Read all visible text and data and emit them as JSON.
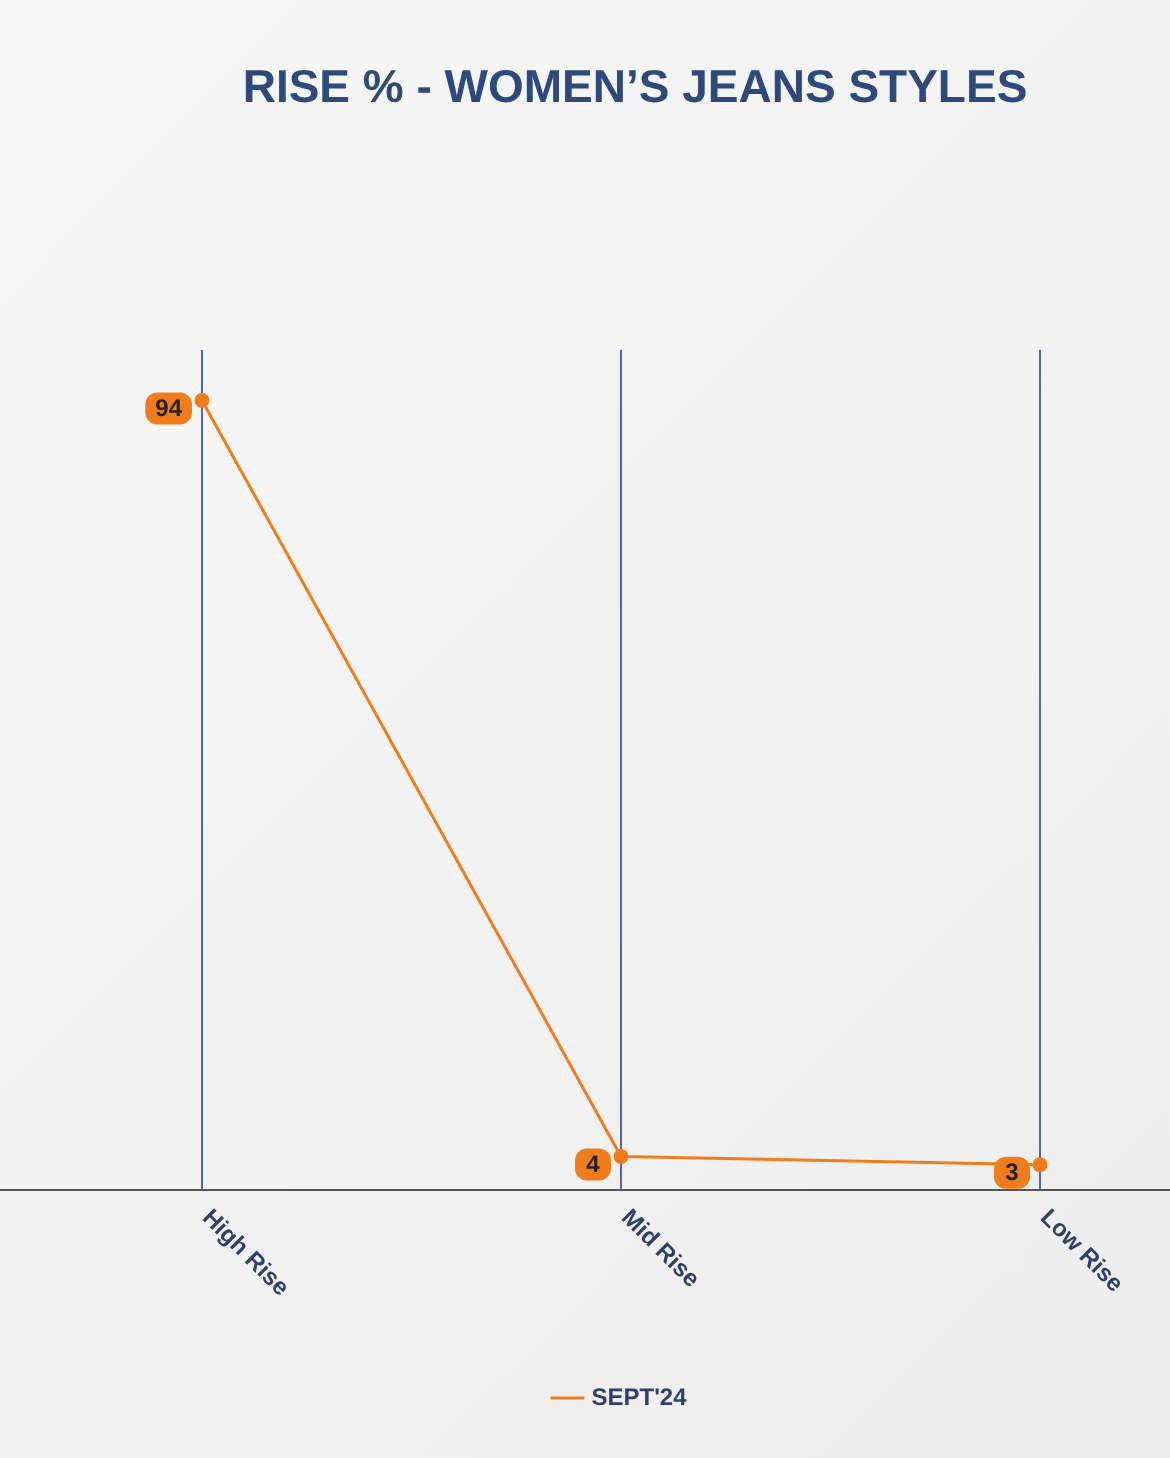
{
  "chart_data": {
    "type": "line",
    "title": "RISE % - WOMEN’S JEANS STYLES",
    "categories": [
      "High Rise",
      "Mid Rise",
      "Low Rise"
    ],
    "series": [
      {
        "name": "SEPT'24",
        "color": "#f07c1b",
        "values": [
          94,
          4,
          3
        ]
      }
    ],
    "data_labels": true,
    "grid": "x",
    "legend": "bottom",
    "marker": "circle",
    "line_style": "solid"
  }
}
